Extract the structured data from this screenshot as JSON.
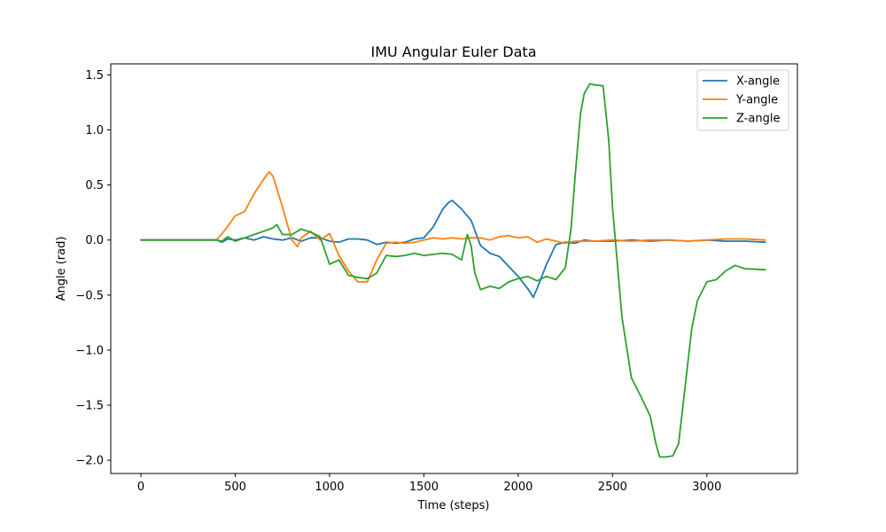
{
  "chart_data": {
    "type": "line",
    "title": "IMU Angular Euler Data",
    "xlabel": "Time (steps)",
    "ylabel": "Angle (rad)",
    "xlim": [
      -160,
      3480
    ],
    "ylim": [
      -2.12,
      1.6
    ],
    "xticks": [
      0,
      500,
      1000,
      1500,
      2000,
      2500,
      3000
    ],
    "yticks": [
      -2.0,
      -1.5,
      -1.0,
      -0.5,
      0.0,
      0.5,
      1.0,
      1.5
    ],
    "ytick_labels": [
      "−2.0",
      "−1.5",
      "−1.0",
      "−0.5",
      "0.0",
      "0.5",
      "1.0",
      "1.5"
    ],
    "grid": false,
    "legend_position": "top-right",
    "series": [
      {
        "name": "X-angle",
        "color": "#1f77b4",
        "x": [
          0,
          100,
          200,
          300,
          400,
          430,
          460,
          500,
          550,
          600,
          650,
          700,
          750,
          800,
          850,
          900,
          950,
          1000,
          1050,
          1100,
          1150,
          1200,
          1250,
          1300,
          1350,
          1400,
          1450,
          1500,
          1550,
          1600,
          1630,
          1650,
          1700,
          1750,
          1800,
          1850,
          1900,
          1950,
          2000,
          2050,
          2080,
          2100,
          2150,
          2200,
          2250,
          2300,
          2350,
          2400,
          2450,
          2500,
          2600,
          2700,
          2800,
          2900,
          3000,
          3100,
          3200,
          3310
        ],
        "y": [
          0,
          0,
          0,
          0,
          0,
          -0.02,
          0.01,
          0.0,
          0.02,
          0.0,
          0.03,
          0.01,
          0.0,
          0.02,
          -0.01,
          0.02,
          0.02,
          -0.01,
          -0.02,
          0.01,
          0.01,
          0.0,
          -0.04,
          -0.02,
          -0.03,
          -0.02,
          0.01,
          0.02,
          0.12,
          0.28,
          0.34,
          0.36,
          0.28,
          0.18,
          -0.05,
          -0.12,
          -0.15,
          -0.24,
          -0.33,
          -0.44,
          -0.52,
          -0.44,
          -0.22,
          -0.04,
          -0.02,
          -0.03,
          0.0,
          -0.01,
          -0.01,
          -0.01,
          0.0,
          -0.01,
          0.0,
          -0.01,
          0.0,
          -0.01,
          -0.01,
          -0.02
        ]
      },
      {
        "name": "Y-angle",
        "color": "#ff7f0e",
        "x": [
          0,
          100,
          200,
          300,
          400,
          450,
          500,
          550,
          600,
          650,
          680,
          700,
          750,
          800,
          830,
          850,
          900,
          950,
          1000,
          1050,
          1100,
          1150,
          1200,
          1250,
          1300,
          1350,
          1400,
          1450,
          1500,
          1550,
          1600,
          1650,
          1700,
          1750,
          1800,
          1850,
          1900,
          1950,
          2000,
          2050,
          2100,
          2150,
          2200,
          2250,
          2300,
          2400,
          2500,
          2600,
          2700,
          2800,
          2900,
          3000,
          3100,
          3200,
          3310
        ],
        "y": [
          0,
          0,
          0,
          0,
          0,
          0.1,
          0.22,
          0.26,
          0.42,
          0.55,
          0.62,
          0.58,
          0.3,
          0.0,
          -0.06,
          0.02,
          0.08,
          0.0,
          0.06,
          -0.14,
          -0.28,
          -0.38,
          -0.38,
          -0.18,
          -0.03,
          -0.02,
          -0.03,
          -0.02,
          0.0,
          0.02,
          0.01,
          0.02,
          0.01,
          0.02,
          0.02,
          0.0,
          0.03,
          0.04,
          0.02,
          0.03,
          -0.02,
          0.01,
          -0.01,
          -0.03,
          -0.01,
          -0.01,
          0.0,
          -0.01,
          0.0,
          0.0,
          -0.01,
          0.0,
          0.01,
          0.01,
          0.0
        ]
      },
      {
        "name": "Z-angle",
        "color": "#2ca02c",
        "x": [
          0,
          100,
          200,
          300,
          400,
          430,
          460,
          500,
          550,
          600,
          650,
          700,
          720,
          750,
          800,
          850,
          900,
          950,
          1000,
          1050,
          1100,
          1150,
          1200,
          1250,
          1300,
          1350,
          1400,
          1450,
          1500,
          1550,
          1600,
          1650,
          1700,
          1730,
          1750,
          1770,
          1800,
          1850,
          1900,
          1950,
          2000,
          2050,
          2100,
          2150,
          2200,
          2250,
          2280,
          2300,
          2330,
          2350,
          2380,
          2400,
          2450,
          2480,
          2500,
          2550,
          2600,
          2650,
          2700,
          2730,
          2750,
          2780,
          2820,
          2850,
          2880,
          2920,
          2950,
          3000,
          3050,
          3100,
          3150,
          3200,
          3310
        ],
        "y": [
          0,
          0,
          0,
          0,
          0,
          -0.01,
          0.03,
          -0.01,
          0.02,
          0.05,
          0.08,
          0.11,
          0.14,
          0.05,
          0.05,
          0.1,
          0.07,
          0.03,
          -0.22,
          -0.18,
          -0.32,
          -0.34,
          -0.35,
          -0.3,
          -0.14,
          -0.15,
          -0.14,
          -0.12,
          -0.14,
          -0.13,
          -0.12,
          -0.13,
          -0.18,
          0.05,
          -0.05,
          -0.3,
          -0.45,
          -0.42,
          -0.44,
          -0.38,
          -0.35,
          -0.33,
          -0.37,
          -0.33,
          -0.36,
          -0.25,
          0.1,
          0.55,
          1.15,
          1.33,
          1.42,
          1.41,
          1.4,
          0.9,
          0.3,
          -0.7,
          -1.25,
          -1.42,
          -1.6,
          -1.85,
          -1.97,
          -1.97,
          -1.96,
          -1.85,
          -1.4,
          -0.8,
          -0.55,
          -0.38,
          -0.36,
          -0.28,
          -0.23,
          -0.26,
          -0.27
        ]
      }
    ]
  }
}
